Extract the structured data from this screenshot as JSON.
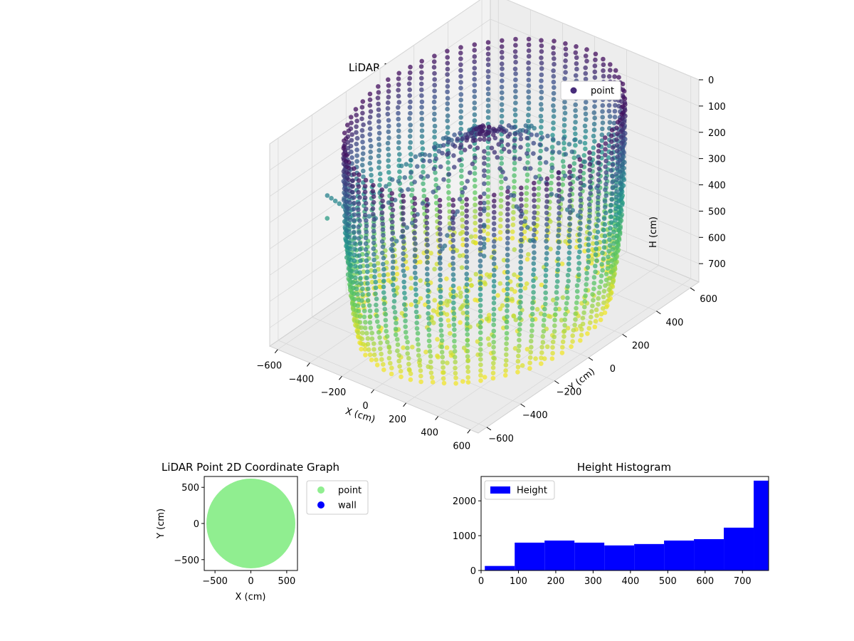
{
  "colors": {
    "point_3d": "#472c7a",
    "point_2d": "#90ee90",
    "wall": "#0000ff",
    "hist": "#0000ff",
    "pane": "#f2f2f2",
    "grid": "#dedede",
    "viridis": [
      "#440154",
      "#3b528b",
      "#21918c",
      "#5ec962",
      "#fde725"
    ]
  },
  "chart_data": [
    {
      "type": "scatter3d",
      "title": "LiDAR Point 3D Coordinate Graph",
      "xlabel": "X (cm)",
      "ylabel": "Y (cm)",
      "zlabel": "H (cm)",
      "xlim": [
        -650,
        650
      ],
      "ylim": [
        -650,
        650
      ],
      "zlim": [
        0,
        770
      ],
      "z_inverted": true,
      "x_ticks": [
        -600,
        -400,
        -200,
        0,
        200,
        400,
        600
      ],
      "y_ticks": [
        -600,
        -400,
        -200,
        0,
        200,
        400,
        600
      ],
      "z_ticks": [
        0,
        100,
        200,
        300,
        400,
        500,
        600,
        700
      ],
      "x_tick_labels": [
        "−600",
        "−400",
        "−200",
        "0",
        "200",
        "400",
        "600"
      ],
      "y_tick_labels": [
        "−600",
        "−400",
        "−200",
        "0",
        "200",
        "400",
        "600"
      ],
      "z_tick_labels": [
        "0",
        "100",
        "200",
        "300",
        "400",
        "500",
        "600",
        "700"
      ],
      "color_by": "H (cm)",
      "colormap": "viridis",
      "legend": {
        "entries": [
          "point"
        ],
        "placement": "top-right"
      },
      "grid": true,
      "description_of_data": "cylindrical scan, radius ~600 cm, heights 0-770 cm",
      "wall_radius": 600,
      "height_max": 770
    },
    {
      "type": "scatter",
      "title": "LiDAR Point 2D Coordinate Graph",
      "xlabel": "X (cm)",
      "ylabel": "Y (cm)",
      "xlim": [
        -650,
        650
      ],
      "ylim": [
        -650,
        650
      ],
      "x_ticks": [
        -500,
        0,
        500
      ],
      "y_ticks": [
        -500,
        0,
        500
      ],
      "x_tick_labels": [
        "−500",
        "0",
        "500"
      ],
      "y_tick_labels": [
        "−500",
        "0",
        "500"
      ],
      "series": [
        {
          "name": "point",
          "color": "#90ee90",
          "shape": "filled disk radius ~620 cm"
        },
        {
          "name": "wall",
          "color": "#0000ff",
          "values": []
        }
      ],
      "legend": {
        "entries": [
          "point",
          "wall"
        ],
        "placement": "outside right"
      }
    },
    {
      "type": "bar",
      "title": "Height Histogram",
      "xlabel": "",
      "ylabel": "",
      "bin_edges": [
        10,
        90,
        170,
        250,
        330,
        410,
        490,
        570,
        650,
        730,
        770
      ],
      "values": [
        130,
        800,
        860,
        800,
        720,
        760,
        860,
        900,
        1230,
        2580
      ],
      "xlim": [
        0,
        770
      ],
      "ylim": [
        0,
        2700
      ],
      "x_ticks": [
        0,
        100,
        200,
        300,
        400,
        500,
        600,
        700
      ],
      "x_tick_labels": [
        "0",
        "100",
        "200",
        "300",
        "400",
        "500",
        "600",
        "700"
      ],
      "y_ticks": [
        0,
        1000,
        2000
      ],
      "y_tick_labels": [
        "0",
        "1000",
        "2000"
      ],
      "legend": {
        "entries": [
          "Height"
        ],
        "placement": "top-left"
      }
    }
  ]
}
